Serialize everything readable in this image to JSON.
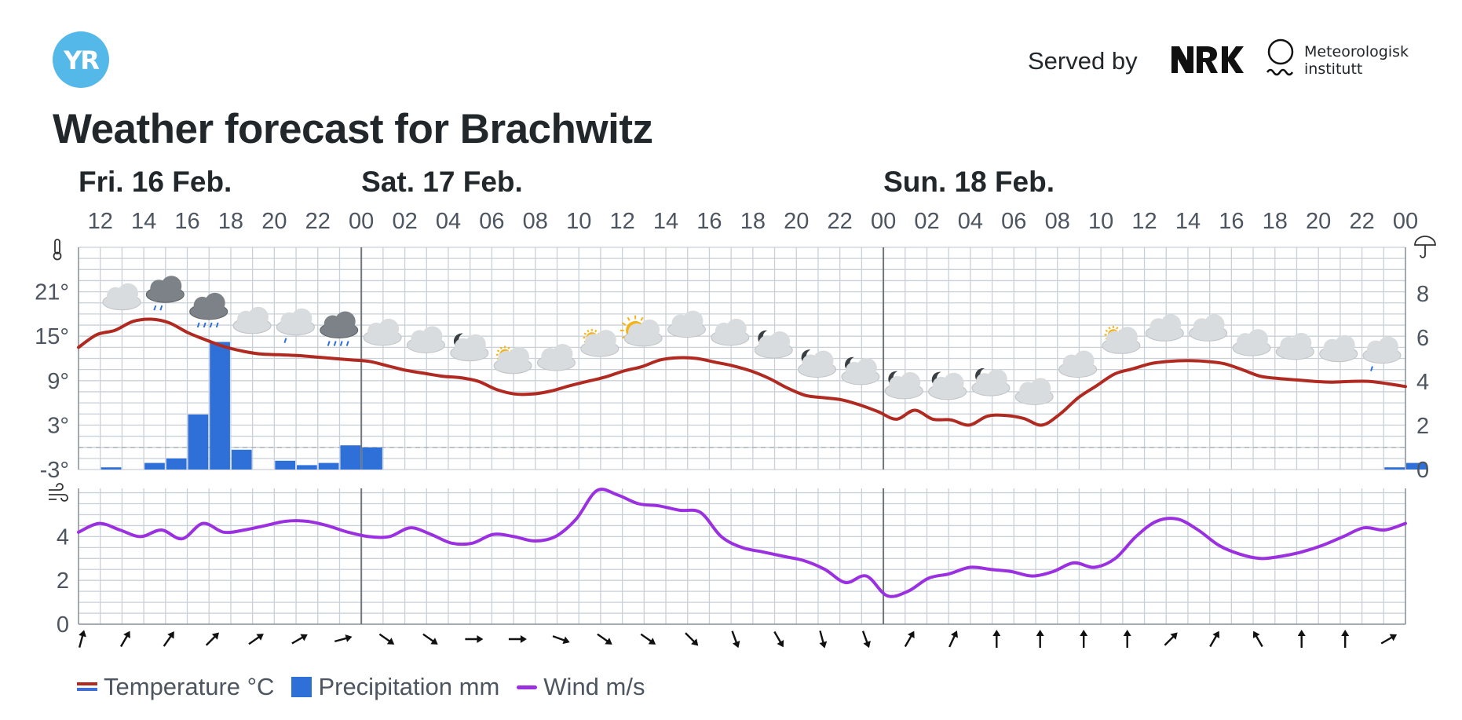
{
  "header": {
    "logo_text": "YR",
    "served_by": "Served by",
    "partner1": "NRK",
    "partner2_line1": "Meteorologisk",
    "partner2_line2": "institutt",
    "title": "Weather forecast for Brachwitz"
  },
  "days": [
    {
      "label": "Fri. 16 Feb.",
      "start_hour_index": 0
    },
    {
      "label": "Sat. 17 Feb.",
      "start_hour_index": 13
    },
    {
      "label": "Sun. 18 Feb.",
      "start_hour_index": 37
    }
  ],
  "legend": {
    "temperature": "Temperature °C",
    "precipitation": "Precipitation mm",
    "wind": "Wind m/s"
  },
  "colors": {
    "temperature_line": "#b02a21",
    "temperature_cold": "#3d6fd6",
    "precipitation": "#2f6fd8",
    "wind": "#9b30e0",
    "grid": "#c9d0d7",
    "day_divider": "#6f757c"
  },
  "chart_data": {
    "type": "line",
    "x_start_hour": 11,
    "hours_total": 61,
    "hour_labels": [
      "12",
      "14",
      "16",
      "18",
      "20",
      "22",
      "00",
      "02",
      "04",
      "06",
      "08",
      "10",
      "12",
      "14",
      "16",
      "18",
      "20",
      "22",
      "00",
      "02",
      "04",
      "06",
      "08",
      "10",
      "12",
      "14",
      "16",
      "18",
      "20",
      "22",
      "00"
    ],
    "temperature": {
      "unit": "°C",
      "ylim": [
        -3,
        27
      ],
      "ticks": [
        -3,
        3,
        9,
        15,
        21
      ],
      "points": [
        [
          0,
          13.5
        ],
        [
          1,
          15.2
        ],
        [
          2,
          15.8
        ],
        [
          3,
          17.0
        ],
        [
          4,
          17.3
        ],
        [
          5,
          16.8
        ],
        [
          6,
          15.5
        ],
        [
          7,
          14.5
        ],
        [
          8,
          13.6
        ],
        [
          9,
          13.0
        ],
        [
          10,
          12.6
        ],
        [
          11,
          12.5
        ],
        [
          12,
          12.4
        ],
        [
          13,
          12.2
        ],
        [
          14,
          12.0
        ],
        [
          15,
          11.8
        ],
        [
          16,
          11.6
        ],
        [
          17,
          11.0
        ],
        [
          18,
          10.4
        ],
        [
          19,
          10.0
        ],
        [
          20,
          9.6
        ],
        [
          21,
          9.4
        ],
        [
          22,
          8.9
        ],
        [
          23,
          7.8
        ],
        [
          24,
          7.2
        ],
        [
          25,
          7.2
        ],
        [
          26,
          7.6
        ],
        [
          27,
          8.3
        ],
        [
          28,
          8.9
        ],
        [
          29,
          9.5
        ],
        [
          30,
          10.3
        ],
        [
          31,
          10.9
        ],
        [
          32,
          11.8
        ],
        [
          33,
          12.1
        ],
        [
          34,
          12.0
        ],
        [
          35,
          11.5
        ],
        [
          36,
          11.0
        ],
        [
          37,
          10.3
        ],
        [
          38,
          9.3
        ],
        [
          39,
          8.0
        ],
        [
          40,
          7.0
        ],
        [
          41,
          6.7
        ],
        [
          42,
          6.4
        ],
        [
          43,
          5.7
        ],
        [
          44,
          4.8
        ],
        [
          45,
          3.8
        ],
        [
          46,
          5.0
        ],
        [
          47,
          3.8
        ],
        [
          48,
          3.7
        ],
        [
          49,
          3.0
        ],
        [
          50,
          4.2
        ],
        [
          51,
          4.3
        ],
        [
          52,
          3.9
        ],
        [
          53,
          3.0
        ],
        [
          54,
          4.5
        ],
        [
          55,
          6.7
        ],
        [
          56,
          8.3
        ],
        [
          57,
          9.9
        ],
        [
          58,
          10.6
        ],
        [
          59,
          11.3
        ],
        [
          60,
          11.6
        ]
      ]
    },
    "temperature_tail": [
      [
        61,
        11.7
      ],
      [
        62,
        11.6
      ],
      [
        63,
        11.3
      ],
      [
        64,
        10.5
      ],
      [
        65,
        9.6
      ],
      [
        66,
        9.3
      ],
      [
        67,
        9.1
      ],
      [
        68,
        8.9
      ],
      [
        69,
        8.8
      ],
      [
        70,
        8.9
      ],
      [
        71,
        8.9
      ],
      [
        72,
        8.6
      ],
      [
        73,
        8.2
      ]
    ],
    "precipitation": {
      "unit": "mm",
      "ylim": [
        0,
        10
      ],
      "ticks": [
        0,
        2,
        4,
        6,
        8
      ],
      "values": [
        0,
        0.1,
        0,
        0.3,
        0.5,
        2.5,
        5.8,
        0.9,
        0,
        0.4,
        0.2,
        0.3,
        1.1,
        1.0,
        0,
        0,
        0,
        0,
        0,
        0,
        0,
        0,
        0,
        0,
        0,
        0,
        0,
        0,
        0,
        0,
        0,
        0,
        0,
        0,
        0,
        0,
        0,
        0,
        0,
        0,
        0,
        0,
        0,
        0,
        0,
        0,
        0,
        0,
        0,
        0,
        0,
        0,
        0,
        0,
        0,
        0,
        0,
        0,
        0,
        0,
        0.1,
        0.3
      ]
    },
    "wind": {
      "unit": "m/s",
      "ylim": [
        0,
        6.2
      ],
      "ticks": [
        0,
        2,
        4
      ],
      "points": [
        [
          0,
          4.2
        ],
        [
          1,
          4.6
        ],
        [
          2,
          4.3
        ],
        [
          3,
          4.0
        ],
        [
          4,
          4.3
        ],
        [
          5,
          3.9
        ],
        [
          6,
          4.6
        ],
        [
          7,
          4.2
        ],
        [
          8,
          4.3
        ],
        [
          9,
          4.5
        ],
        [
          10,
          4.7
        ],
        [
          11,
          4.7
        ],
        [
          12,
          4.5
        ],
        [
          13,
          4.2
        ],
        [
          14,
          4.0
        ],
        [
          15,
          4.0
        ],
        [
          16,
          4.4
        ],
        [
          17,
          4.1
        ],
        [
          18,
          3.7
        ],
        [
          19,
          3.7
        ],
        [
          20,
          4.1
        ],
        [
          21,
          4.0
        ],
        [
          22,
          3.8
        ],
        [
          23,
          4.0
        ],
        [
          24,
          4.8
        ],
        [
          25,
          6.1
        ],
        [
          26,
          5.9
        ],
        [
          27,
          5.5
        ],
        [
          28,
          5.4
        ],
        [
          29,
          5.2
        ],
        [
          30,
          5.1
        ],
        [
          31,
          4.0
        ],
        [
          32,
          3.5
        ],
        [
          33,
          3.3
        ],
        [
          34,
          3.1
        ],
        [
          35,
          2.9
        ],
        [
          36,
          2.5
        ],
        [
          37,
          1.9
        ],
        [
          38,
          2.2
        ],
        [
          39,
          1.3
        ],
        [
          40,
          1.5
        ],
        [
          41,
          2.1
        ],
        [
          42,
          2.3
        ],
        [
          43,
          2.6
        ],
        [
          44,
          2.5
        ],
        [
          45,
          2.4
        ],
        [
          46,
          2.2
        ],
        [
          47,
          2.4
        ],
        [
          48,
          2.8
        ],
        [
          49,
          2.6
        ],
        [
          50,
          3.0
        ],
        [
          51,
          4.0
        ],
        [
          52,
          4.7
        ],
        [
          53,
          4.8
        ],
        [
          54,
          4.3
        ],
        [
          55,
          3.6
        ],
        [
          56,
          3.2
        ],
        [
          57,
          3.0
        ],
        [
          58,
          3.1
        ],
        [
          59,
          3.3
        ],
        [
          60,
          3.6
        ],
        [
          61,
          4.0
        ],
        [
          62,
          4.4
        ],
        [
          63,
          4.3
        ],
        [
          64,
          4.6
        ]
      ]
    },
    "wind_directions_deg": [
      15,
      30,
      35,
      45,
      55,
      60,
      75,
      125,
      125,
      90,
      90,
      110,
      125,
      125,
      135,
      160,
      150,
      165,
      160,
      30,
      25,
      0,
      0,
      0,
      0,
      45,
      30,
      330,
      0,
      0,
      60
    ],
    "weather_symbols": [
      "cloudy",
      "rain-cloudy",
      "rain-heavy",
      "cloudy",
      "rain-light",
      "rain-heavy",
      "cloudy",
      "cloudy",
      "night-cloudy",
      "partly-sunny",
      "cloudy",
      "partly-sunny",
      "sunny-cloud",
      "cloudy",
      "cloudy",
      "night-cloudy",
      "night-cloudy",
      "night-cloudy",
      "night-cloudy",
      "night-cloudy",
      "night-cloudy",
      "cloudy",
      "cloudy",
      "partly-sunny",
      "cloudy",
      "cloudy",
      "cloudy",
      "cloudy",
      "cloudy",
      "rain-light"
    ]
  }
}
